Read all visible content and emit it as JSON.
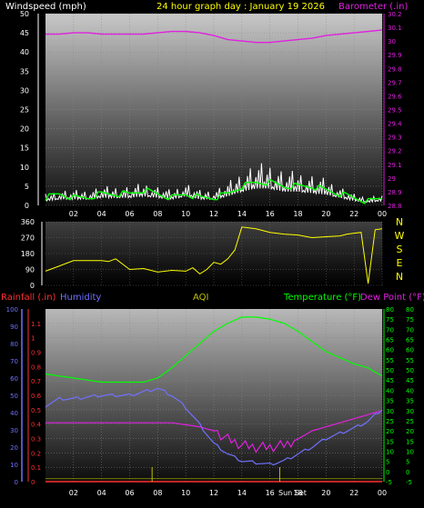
{
  "header": {
    "left_title": "Windspeed (mph)",
    "center_title": "24 hour graph day : January 19 2026",
    "right_title": "Barometer (.in)"
  },
  "wind_dir": {
    "labels_right": [
      "N",
      "W",
      "S",
      "E",
      "N"
    ]
  },
  "bottom": {
    "left_title": "Rainfall (.in)",
    "humidity_title": "Humidity",
    "aqi_title": "AQI",
    "temp_title": "Temperature (°F)",
    "dew_title": "Dew Point (°F)",
    "sun_label": "Sun Set"
  },
  "colors": {
    "windspeed": "#ffffff",
    "wind_avg": "#00ff00",
    "barometer": "#e020e0",
    "wind_dir": "#ffff00",
    "rain": "#ff3030",
    "humidity": "#7070ff",
    "aqi": "#c0c000",
    "temperature": "#00ff00",
    "dewpoint": "#e020e0"
  },
  "chart_data": [
    {
      "type": "line",
      "title": "24 hour graph day : January 19 2026",
      "ylabel": "Windspeed (mph)",
      "ylabel_right": "Barometer (.in)",
      "ylim": [
        0,
        50
      ],
      "ylim_right": [
        28.8,
        30.2
      ],
      "yticks": [
        0,
        5,
        10,
        15,
        20,
        25,
        30,
        35,
        40,
        45,
        50
      ],
      "yticks_right": [
        "28.8",
        "28.9",
        "29",
        "29.1",
        "29.2",
        "29.3",
        "29.4",
        "29.5",
        "29.6",
        "29.7",
        "29.8",
        "29.9",
        "30",
        "30.1",
        "30.2"
      ],
      "xticks": [
        "02",
        "04",
        "06",
        "08",
        "10",
        "12",
        "14",
        "16",
        "18",
        "20",
        "22",
        "00"
      ],
      "x_hours": [
        0,
        1,
        2,
        3,
        4,
        5,
        6,
        7,
        8,
        9,
        10,
        11,
        12,
        13,
        14,
        15,
        16,
        17,
        18,
        19,
        20,
        21,
        22,
        23,
        24
      ],
      "series": [
        {
          "name": "Windspeed (mph)",
          "axis": "left",
          "values": [
            2,
            3,
            2,
            2,
            3,
            3,
            3,
            4,
            3,
            2,
            3,
            2,
            2,
            3,
            5,
            6,
            6,
            5,
            5,
            5,
            4,
            3,
            2,
            1,
            2
          ]
        },
        {
          "name": "Gust",
          "axis": "left",
          "values": [
            3,
            4,
            4,
            4,
            5,
            5,
            5,
            6,
            5,
            4,
            6,
            4,
            4,
            6,
            9,
            11,
            11,
            9,
            9,
            8,
            7,
            5,
            3,
            2,
            3
          ]
        },
        {
          "name": "Barometer (.in)",
          "axis": "right",
          "values": [
            30.05,
            30.05,
            30.06,
            30.06,
            30.05,
            30.05,
            30.05,
            30.05,
            30.06,
            30.07,
            30.07,
            30.06,
            30.04,
            30.01,
            30.0,
            29.99,
            29.99,
            30.0,
            30.01,
            30.02,
            30.04,
            30.05,
            30.06,
            30.07,
            30.08
          ]
        }
      ]
    },
    {
      "type": "line",
      "ylabel": "Wind direction",
      "ylim": [
        0,
        360
      ],
      "yticks": [
        0,
        90,
        180,
        270,
        360
      ],
      "xticks": [
        "02",
        "04",
        "06",
        "08",
        "10",
        "12",
        "14",
        "16",
        "18",
        "20",
        "22",
        "00"
      ],
      "series": [
        {
          "name": "Wind direction",
          "x": [
            0,
            0.5,
            1,
            2,
            3,
            4,
            4.5,
            5,
            6,
            7,
            8,
            9,
            10,
            10.5,
            11,
            11.5,
            12,
            12.5,
            13,
            13.5,
            14,
            14.5,
            15,
            16,
            17,
            18,
            19,
            20,
            21,
            21.5,
            22,
            22.5,
            23,
            23.5,
            24
          ],
          "values": [
            80,
            95,
            110,
            140,
            140,
            140,
            135,
            150,
            90,
            95,
            75,
            85,
            80,
            100,
            65,
            90,
            130,
            120,
            150,
            200,
            330,
            325,
            320,
            300,
            290,
            285,
            270,
            275,
            280,
            290,
            295,
            300,
            10,
            315,
            320
          ]
        }
      ]
    },
    {
      "type": "line",
      "ylabel": "Rainfall (.in)",
      "ylabel_humidity": "Humidity",
      "ylabel_right": "Temperature (°F)",
      "ylabel_right2": "Dew Point (°F)",
      "ylim_rain": [
        0,
        1.2
      ],
      "ylim_humidity": [
        0,
        100
      ],
      "ylim_temp": [
        -5,
        80
      ],
      "yticks_rain": [
        "0",
        "0.1",
        "0.2",
        "0.3",
        "0.4",
        "0.5",
        "0.6",
        "0.7",
        "0.8",
        "0.9",
        "1",
        "1.1"
      ],
      "yticks_humidity": [
        0,
        10,
        20,
        30,
        40,
        50,
        60,
        70,
        80,
        90,
        100
      ],
      "yticks_temp": [
        -5,
        0,
        5,
        10,
        15,
        20,
        25,
        30,
        35,
        40,
        45,
        50,
        55,
        60,
        65,
        70,
        75,
        80
      ],
      "xticks": [
        "02",
        "04",
        "06",
        "08",
        "10",
        "12",
        "14",
        "16",
        "18",
        "20",
        "22",
        "00"
      ],
      "x_hours": [
        0,
        1,
        2,
        3,
        4,
        5,
        6,
        7,
        8,
        9,
        10,
        11,
        12,
        13,
        14,
        15,
        16,
        17,
        18,
        19,
        20,
        21,
        22,
        23,
        24
      ],
      "series": [
        {
          "name": "Temperature (°F)",
          "axis": "temp",
          "values": [
            48,
            47,
            46,
            45,
            44,
            44,
            44,
            44,
            46,
            51,
            57,
            63,
            69,
            73,
            76,
            76,
            75,
            73,
            69,
            64,
            59,
            56,
            53,
            51,
            47
          ]
        },
        {
          "name": "Dew Point (°F)",
          "axis": "temp",
          "values": [
            24,
            24,
            24,
            24,
            24,
            24,
            24,
            24,
            24,
            24,
            23,
            22,
            20,
            16,
            13,
            12,
            12,
            13,
            16,
            20,
            22,
            24,
            26,
            28,
            30
          ]
        },
        {
          "name": "Humidity",
          "axis": "humidity",
          "values": [
            44,
            48,
            48,
            49,
            50,
            50,
            50,
            52,
            54,
            50,
            43,
            33,
            22,
            16,
            12,
            11,
            10,
            12,
            16,
            20,
            25,
            28,
            31,
            35,
            42
          ]
        },
        {
          "name": "Rainfall (.in)",
          "axis": "rain",
          "values": [
            0,
            0,
            0,
            0,
            0,
            0,
            0,
            0,
            0,
            0,
            0,
            0,
            0,
            0,
            0,
            0,
            0,
            0,
            0,
            0,
            0,
            0,
            0,
            0,
            0
          ]
        }
      ],
      "annotations": [
        "Sun Set"
      ]
    }
  ]
}
